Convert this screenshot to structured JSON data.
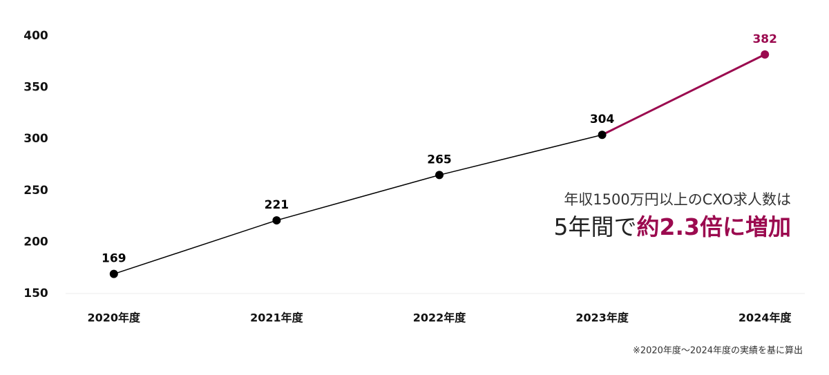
{
  "chart_data": {
    "type": "line",
    "categories": [
      "2020年度",
      "2021年度",
      "2022年度",
      "2023年度",
      "2024年度"
    ],
    "values": [
      169,
      221,
      265,
      304,
      382
    ],
    "color": "#000000",
    "highlight_color": "#9b0a4f",
    "ylim": [
      150,
      400
    ],
    "yticks": [
      150,
      200,
      250,
      300,
      350,
      400
    ],
    "grid": false,
    "annotation": {
      "line1": "年収1500万円以上のCXO求人数は",
      "line2_plain": "5年間で",
      "line2_emphasis": "約2.3倍に増加"
    },
    "note": "※2020年度〜2024年度の実績を基に算出"
  }
}
